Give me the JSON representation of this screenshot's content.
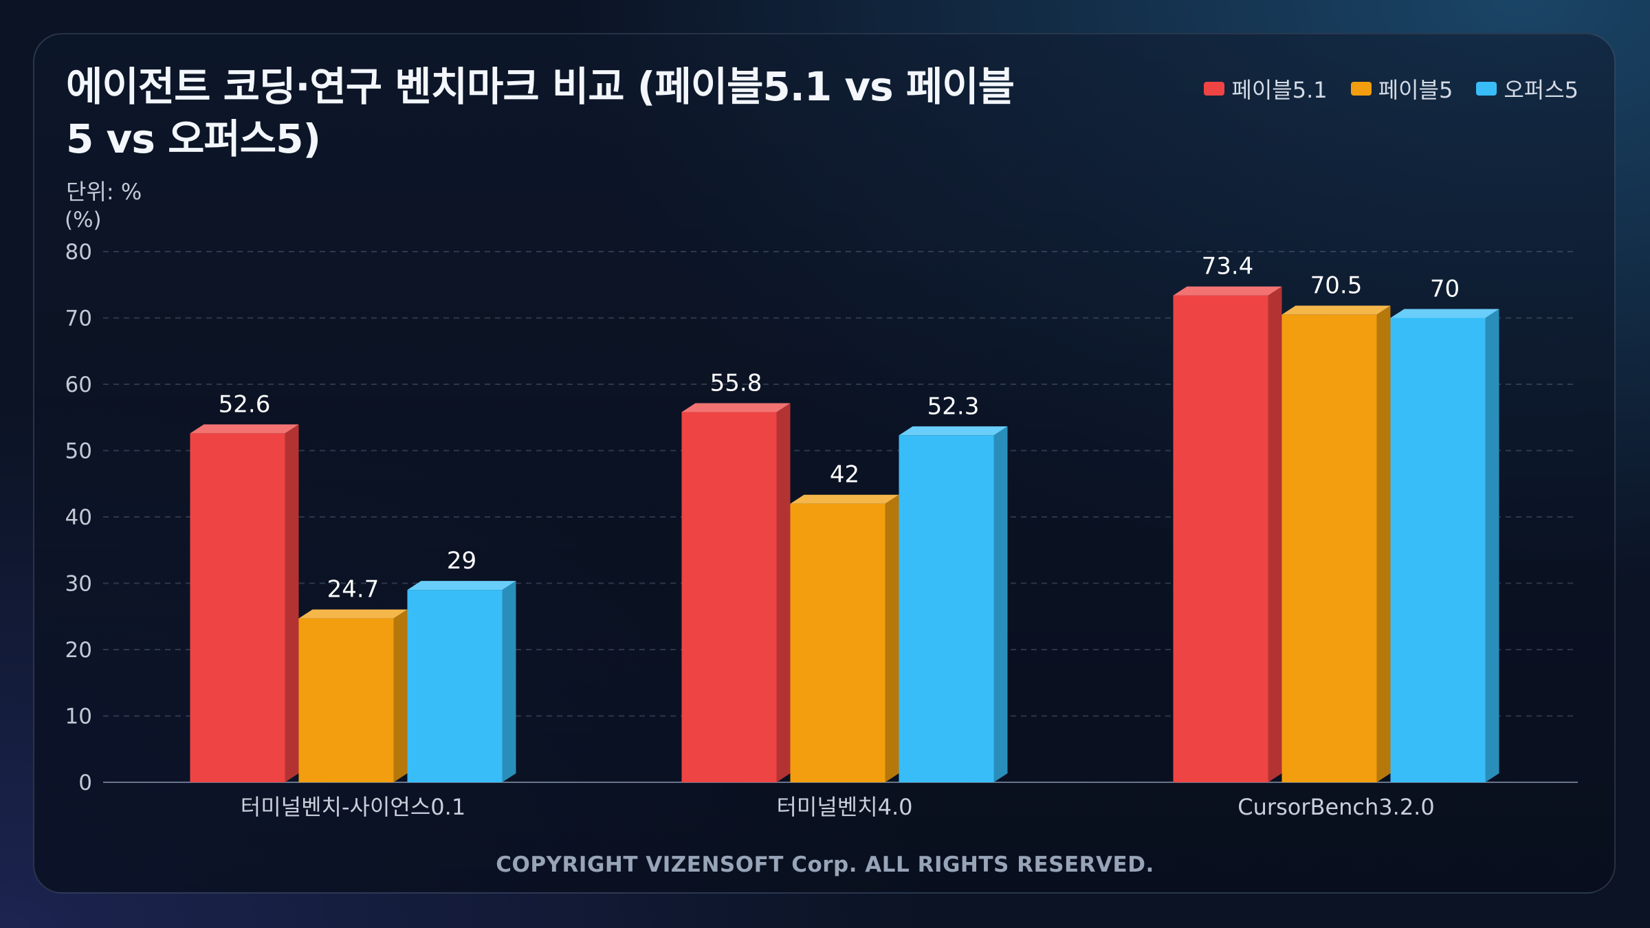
{
  "title": "에이전트 코딩·연구 벤치마크 비교 (페이블5.1 vs 페이블5 vs 오퍼스5)",
  "subtitle": "단위: %",
  "footer": "COPYRIGHT VIZENSOFT Corp. ALL RIGHTS RESERVED.",
  "chart_data": {
    "type": "bar",
    "title": "에이전트 코딩·연구 벤치마크 비교 (페이블5.1 vs 페이블5 vs 오퍼스5)",
    "ylabel": "(%)",
    "xlabel": "",
    "ylim": [
      0,
      80
    ],
    "yticks": [
      0,
      10,
      20,
      30,
      40,
      50,
      60,
      70,
      80
    ],
    "grid": true,
    "legend_position": "top-right",
    "categories": [
      "터미널벤치-사이언스0.1",
      "터미널벤치4.0",
      "CursorBench3.2.0"
    ],
    "series": [
      {
        "name": "페이블5.1",
        "values": [
          52.6,
          55.8,
          73.4
        ],
        "color": "#ef4444"
      },
      {
        "name": "페이블5",
        "values": [
          24.7,
          42,
          70.5
        ],
        "color": "#f29e0e"
      },
      {
        "name": "오퍼스5",
        "values": [
          29,
          52.3,
          70
        ],
        "color": "#38bdf8"
      }
    ]
  }
}
